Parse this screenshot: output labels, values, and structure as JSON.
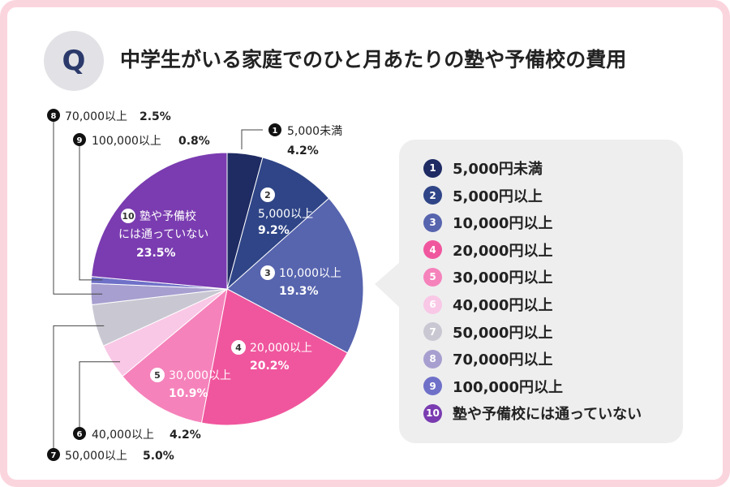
{
  "header": {
    "badge": "Q",
    "title": "中学生がいる家庭でのひと月あたりの塾や予備校の費用"
  },
  "colors": {
    "frame": "#fbd5de",
    "slices": [
      "#1f2b63",
      "#2f4587",
      "#5764ae",
      "#f0569e",
      "#f582bb",
      "#f9c8e6",
      "#c9c8d2",
      "#a79fcf",
      "#6f70c8",
      "#7a3cb0"
    ]
  },
  "chart_data": {
    "type": "pie",
    "title": "中学生がいる家庭でのひと月あたりの塾や予備校の費用",
    "slices": [
      {
        "num": "1",
        "label": "5,000未満",
        "legend": "5,000円未満",
        "value": 4.2,
        "pct": "4.2%"
      },
      {
        "num": "2",
        "label": "5,000以上",
        "legend": "5,000円以上",
        "value": 9.2,
        "pct": "9.2%"
      },
      {
        "num": "3",
        "label": "10,000以上",
        "legend": "10,000円以上",
        "value": 19.3,
        "pct": "19.3%"
      },
      {
        "num": "4",
        "label": "20,000以上",
        "legend": "20,000円以上",
        "value": 20.2,
        "pct": "20.2%"
      },
      {
        "num": "5",
        "label": "30,000以上",
        "legend": "30,000円以上",
        "value": 10.9,
        "pct": "10.9%"
      },
      {
        "num": "6",
        "label": "40,000以上",
        "legend": "40,000円以上",
        "value": 4.2,
        "pct": "4.2%"
      },
      {
        "num": "7",
        "label": "50,000以上",
        "legend": "50,000円以上",
        "value": 5.0,
        "pct": "5.0%"
      },
      {
        "num": "8",
        "label": "70,000以上",
        "legend": "70,000円以上",
        "value": 2.5,
        "pct": "2.5%"
      },
      {
        "num": "9",
        "label": "100,000以上",
        "legend": "100,000円以上",
        "value": 0.8,
        "pct": "0.8%"
      },
      {
        "num": "10",
        "label": "塾や予備校 には通っていない",
        "legend": "塾や予備校には通っていない",
        "value": 23.5,
        "pct": "23.5%"
      }
    ]
  }
}
